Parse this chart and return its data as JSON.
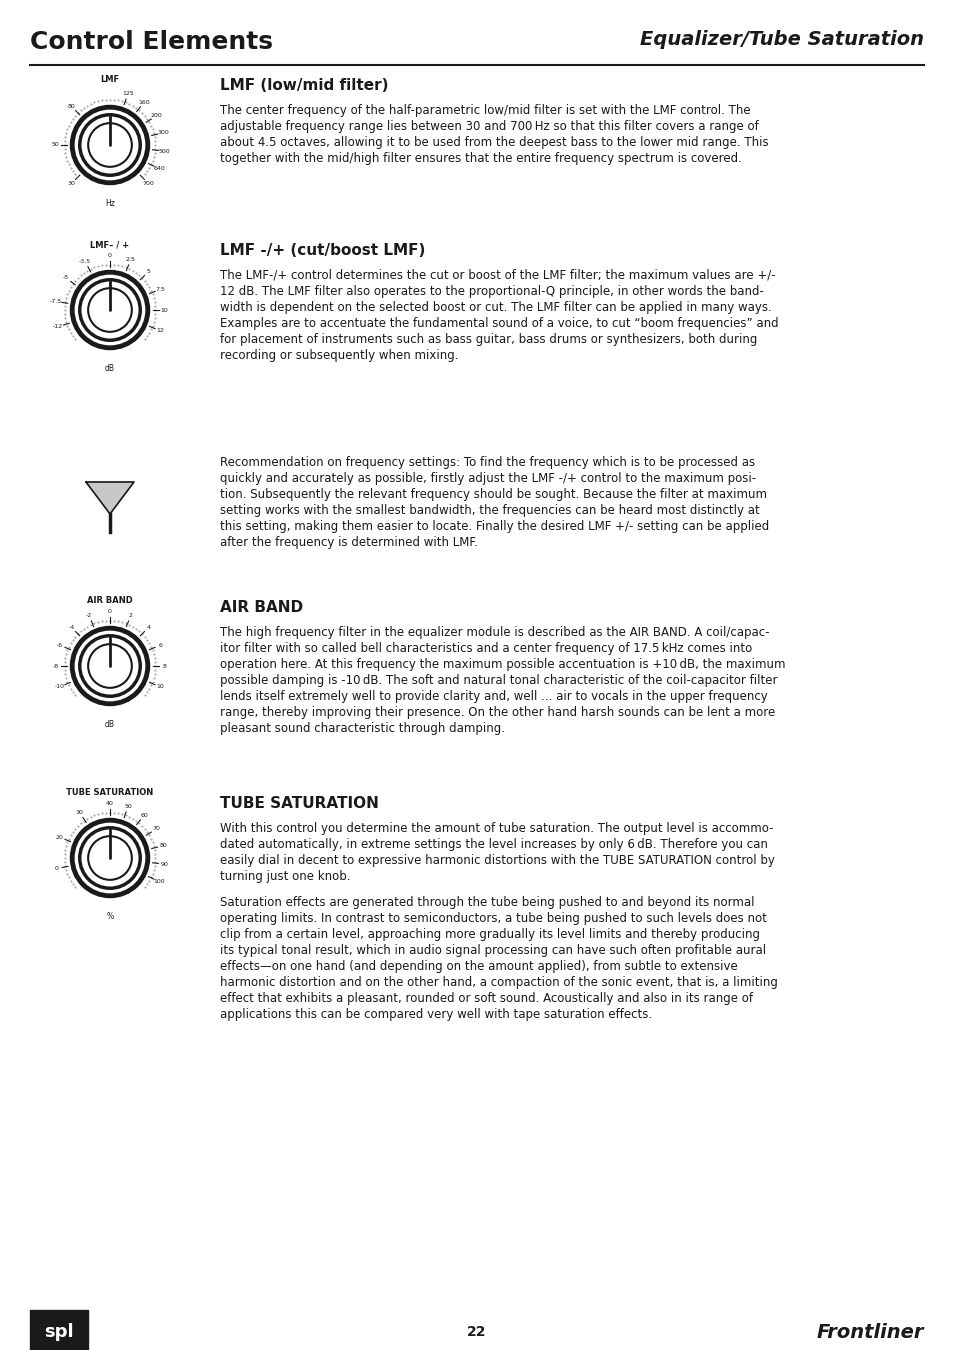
{
  "page_bg": "#ffffff",
  "header_left": "Control Elements",
  "header_right": "Equalizer/Tube Saturation",
  "footer_page": "22",
  "footer_right": "Frontliner",
  "section1_title": "LMF (low/mid filter)",
  "section1_body": [
    "The center frequency of the half-parametric low/mid filter is set with the LMF control. The",
    "adjustable frequency range lies between 30 and 700 Hz so that this filter covers a range of",
    "about 4.5 octaves, allowing it to be used from the deepest bass to the lower mid range. This",
    "together with the mid/high filter ensures that the entire frequency spectrum is covered."
  ],
  "section2_title": "LMF -/+ (cut/boost LMF)",
  "section2_body": [
    "The LMF-/+ control determines the cut or boost of the LMF filter; the maximum values are +/-",
    "12 dB. The LMF filter also operates to the proportional-Q principle, in other words the band-",
    "width is dependent on the selected boost or cut. The LMF filter can be applied in many ways.",
    "Examples are to accentuate the fundamental sound of a voice, to cut “boom frequencies” and",
    "for placement of instruments such as bass guitar, bass drums or synthesizers, both during",
    "recording or subsequently when mixing."
  ],
  "section2b_body": [
    "Recommendation on frequency settings: To find the frequency which is to be processed as",
    "quickly and accurately as possible, firstly adjust the LMF -/+ control to the maximum posi-",
    "tion. Subsequently the relevant frequency should be sought. Because the filter at maximum",
    "setting works with the smallest bandwidth, the frequencies can be heard most distinctly at",
    "this setting, making them easier to locate. Finally the desired LMF +/- setting can be applied",
    "after the frequency is determined with LMF."
  ],
  "section3_title": "AIR BAND",
  "section3_body": [
    "The high frequency filter in the equalizer module is described as the AIR BAND. A coil/capac-",
    "itor filter with so called bell characteristics and a center frequency of 17.5 kHz comes into",
    "operation here. At this frequency the maximum possible accentuation is +10 dB, the maximum",
    "possible damping is -10 dB. The soft and natural tonal characteristic of the coil-capacitor filter",
    "lends itself extremely well to provide clarity and, well ... air to vocals in the upper frequency",
    "range, thereby improving their presence. On the other hand harsh sounds can be lent a more",
    "pleasant sound characteristic through damping."
  ],
  "section4_title": "TUBE SATURATION",
  "section4_body": [
    "With this control you determine the amount of tube saturation. The output level is accommo-",
    "dated automatically, in extreme settings the level increases by only 6 dB. Therefore you can",
    "easily dial in decent to expressive harmonic distortions with the TUBE SATURATION control by",
    "turning just one knob."
  ],
  "section4b_body": [
    "Saturation effects are generated through the tube being pushed to and beyond its normal",
    "operating limits. In contrast to semiconductors, a tube being pushed to such levels does not",
    "clip from a certain level, approaching more gradually its level limits and thereby producing",
    "its typical tonal result, which in audio signal processing can have such often profitable aural",
    "effects—on one hand (and depending on the amount applied), from subtle to extensive",
    "harmonic distortion and on the other hand, a compaction of the sonic event, that is, a limiting",
    "effect that exhibits a pleasant, rounded or soft sound. Acoustically and also in its range of",
    "applications this can be compared very well with tape saturation effects."
  ],
  "knob1_label": "LMF",
  "knob1_sublabel": "Hz",
  "knob1_ticks_cw": [
    "125",
    "160",
    "200",
    "300",
    "500",
    "640",
    "700"
  ],
  "knob1_ticks_ccw": [
    "80",
    "50",
    "30"
  ],
  "knob2_label": "LMF– / +",
  "knob2_sublabel": "dB",
  "knob2_ticks_cw": [
    "2.5",
    "5",
    "7.5",
    "10",
    "12"
  ],
  "knob2_ticks_ccw": [
    "-3.5",
    "-5",
    "-7.5",
    "-12"
  ],
  "knob2_center": "0",
  "knob3_label": "AIR BAND",
  "knob3_sublabel": "dB",
  "knob3_ticks_cw": [
    "2",
    "4",
    "6",
    "8",
    "10"
  ],
  "knob3_ticks_ccw": [
    "-2",
    "-4",
    "-6",
    "-8",
    "-10"
  ],
  "knob3_center": "0",
  "knob4_label": "TUBE SATURATION",
  "knob4_sublabel": "%",
  "knob4_ticks_cw": [
    "50",
    "60",
    "70",
    "80",
    "90",
    "100"
  ],
  "knob4_ticks_ccw": [
    "30",
    "20",
    "0"
  ],
  "knob4_center": "40"
}
